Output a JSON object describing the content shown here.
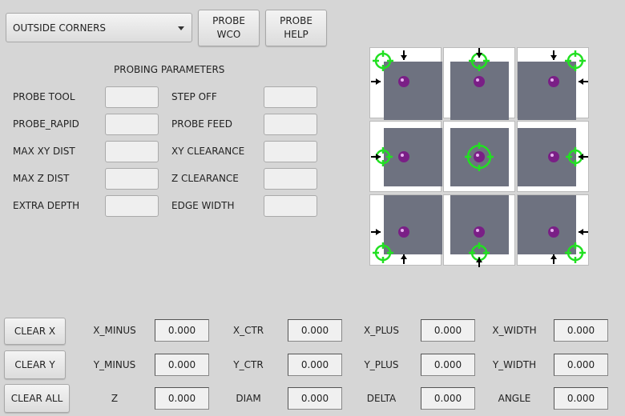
{
  "top": {
    "mode_select": "OUTSIDE CORNERS",
    "probe_wco": "PROBE\nWCO",
    "probe_wco_l1": "PROBE",
    "probe_wco_l2": "WCO",
    "probe_help_l1": "PROBE",
    "probe_help_l2": "HELP"
  },
  "params": {
    "title": "PROBING PARAMETERS",
    "left": [
      {
        "label": "PROBE TOOL",
        "value": ""
      },
      {
        "label": "PROBE_RAPID",
        "value": ""
      },
      {
        "label": "MAX XY DIST",
        "value": ""
      },
      {
        "label": "MAX Z DIST",
        "value": ""
      },
      {
        "label": "EXTRA DEPTH",
        "value": ""
      }
    ],
    "right": [
      {
        "label": "STEP OFF",
        "value": ""
      },
      {
        "label": "PROBE FEED",
        "value": ""
      },
      {
        "label": "XY CLEARANCE",
        "value": ""
      },
      {
        "label": "Z CLEARANCE",
        "value": ""
      },
      {
        "label": "EDGE WIDTH",
        "value": ""
      }
    ]
  },
  "grid": {
    "cells": [
      "top-left-corner",
      "top-edge",
      "top-right-corner",
      "left-edge",
      "center",
      "right-edge",
      "bottom-left-corner",
      "bottom-edge",
      "bottom-right-corner"
    ],
    "colors": {
      "target": "#22e022",
      "ball": "#7a1f86",
      "stock": "#6e7280"
    }
  },
  "buttons": {
    "clear_x": "CLEAR X",
    "clear_y": "CLEAR Y",
    "clear_all": "CLEAR ALL"
  },
  "results": [
    [
      {
        "label": "X_MINUS",
        "value": "0.000"
      },
      {
        "label": "X_CTR",
        "value": "0.000"
      },
      {
        "label": "X_PLUS",
        "value": "0.000"
      },
      {
        "label": "X_WIDTH",
        "value": "0.000"
      }
    ],
    [
      {
        "label": "Y_MINUS",
        "value": "0.000"
      },
      {
        "label": "Y_CTR",
        "value": "0.000"
      },
      {
        "label": "Y_PLUS",
        "value": "0.000"
      },
      {
        "label": "Y_WIDTH",
        "value": "0.000"
      }
    ],
    [
      {
        "label": "Z",
        "value": "0.000"
      },
      {
        "label": "DIAM",
        "value": "0.000"
      },
      {
        "label": "DELTA",
        "value": "0.000"
      },
      {
        "label": "ANGLE",
        "value": "0.000"
      }
    ]
  ]
}
